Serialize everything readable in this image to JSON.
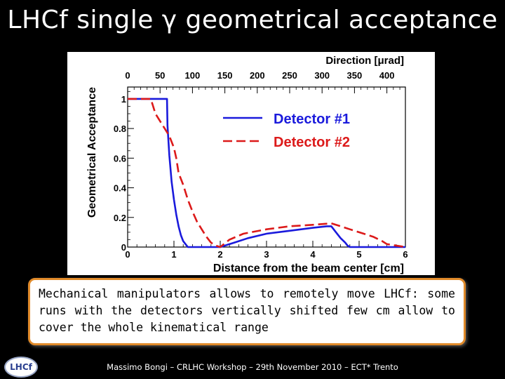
{
  "slide": {
    "title": "LHCf single γ geometrical acceptance",
    "caption": "Mechanical manipulators allows to remotely move LHCf: some runs with the detectors vertically shifted few cm allow to cover the whole kinematical range",
    "footer": "Massimo Bongi – CRLHC Workshop – 29th November 2010 – ECT* Trento",
    "logo_text": "LHCf"
  },
  "chart_data": {
    "type": "line",
    "title": "",
    "xlabel": "Distance from the beam center [cm]",
    "ylabel": "Geometrical Acceptance",
    "x2label": "Direction [μrad]",
    "xlim": [
      0,
      6
    ],
    "ylim": [
      0,
      1.08
    ],
    "x_ticks": [
      "0",
      "1",
      "2",
      "3",
      "4",
      "5",
      "6"
    ],
    "y_ticks": [
      "0",
      "0.2",
      "0.4",
      "0.6",
      "0.8",
      "1"
    ],
    "x2_ticks": [
      "0",
      "50",
      "100",
      "150",
      "200",
      "250",
      "300",
      "350",
      "400"
    ],
    "series": [
      {
        "name": "Detector #1",
        "color": "#1a1adc",
        "dash": "solid",
        "x": [
          0,
          0.85,
          0.86,
          0.9,
          0.95,
          1.0,
          1.05,
          1.1,
          1.15,
          1.2,
          1.25,
          1.3,
          1.4,
          1.6,
          1.8,
          2.0,
          2.3,
          2.6,
          3.0,
          3.5,
          4.0,
          4.3,
          4.4,
          4.5,
          4.6,
          4.7,
          4.75,
          4.8,
          5.0,
          6.0
        ],
        "y": [
          1.0,
          1.0,
          0.82,
          0.62,
          0.44,
          0.32,
          0.22,
          0.14,
          0.08,
          0.04,
          0.02,
          0.0,
          0.0,
          0.0,
          0.0,
          0.0,
          0.03,
          0.06,
          0.09,
          0.11,
          0.13,
          0.14,
          0.14,
          0.1,
          0.06,
          0.03,
          0.01,
          0.0,
          0.0,
          0.0
        ]
      },
      {
        "name": "Detector #2",
        "color": "#dc1a1a",
        "dash": "dashed",
        "x": [
          0,
          0.5,
          0.55,
          0.6,
          0.7,
          0.8,
          0.9,
          1.0,
          1.05,
          1.1,
          1.2,
          1.3,
          1.4,
          1.5,
          1.6,
          1.7,
          1.8,
          1.9,
          2.0,
          2.2,
          2.5,
          3.0,
          3.5,
          4.0,
          4.4,
          4.6,
          4.8,
          5.0,
          5.3,
          5.5,
          5.6,
          6.0
        ],
        "y": [
          1.0,
          1.0,
          0.95,
          0.9,
          0.85,
          0.8,
          0.75,
          0.67,
          0.6,
          0.5,
          0.42,
          0.32,
          0.24,
          0.17,
          0.12,
          0.07,
          0.03,
          0.01,
          0.0,
          0.05,
          0.09,
          0.12,
          0.14,
          0.15,
          0.16,
          0.14,
          0.12,
          0.1,
          0.07,
          0.04,
          0.02,
          0.0
        ]
      }
    ],
    "legend_position": "top-right"
  }
}
